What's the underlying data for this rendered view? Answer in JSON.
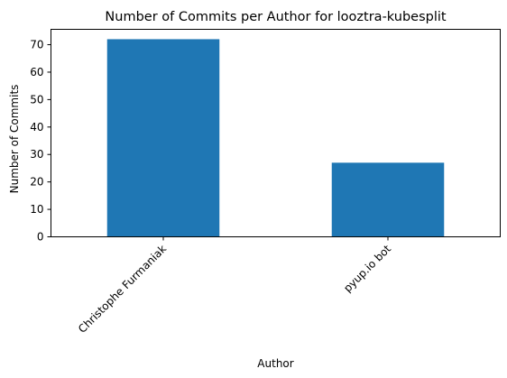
{
  "chart_data": {
    "type": "bar",
    "title": "Number of Commits per Author for looztra-kubesplit",
    "xlabel": "Author",
    "ylabel": "Number of Commits",
    "categories": [
      "Christophe Furmaniak",
      "pyup.io bot"
    ],
    "values": [
      72,
      27
    ],
    "ylim": [
      0,
      75.6
    ],
    "yticks": [
      0,
      10,
      20,
      30,
      40,
      50,
      60,
      70
    ],
    "grid": false,
    "legend": "none",
    "bar_color": "#1f77b4"
  }
}
